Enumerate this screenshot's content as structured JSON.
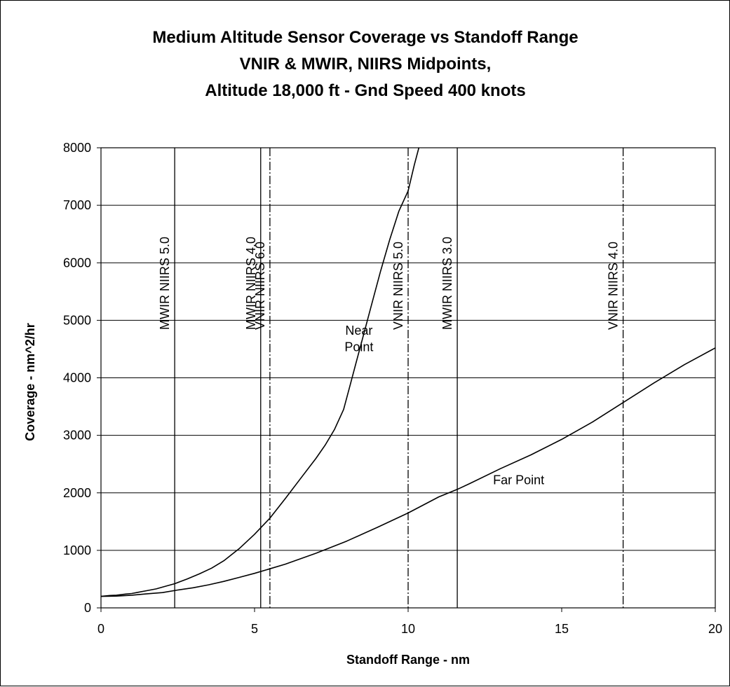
{
  "chart_data": {
    "type": "line",
    "title": [
      "Medium Altitude Sensor Coverage vs Standoff Range",
      "VNIR & MWIR, NIIRS Midpoints,",
      "Altitude 18,000 ft - Gnd Speed 400 knots"
    ],
    "xlabel": "Standoff Range - nm",
    "ylabel": "Coverage - nm^2/hr",
    "xlim": [
      0,
      20
    ],
    "ylim": [
      0,
      8000
    ],
    "x_ticks": [
      0,
      5,
      10,
      15,
      20
    ],
    "x_tick_labels": [
      "0",
      "5",
      "10",
      "15",
      "20"
    ],
    "y_ticks": [
      0,
      1000,
      2000,
      3000,
      4000,
      5000,
      6000,
      7000,
      8000
    ],
    "y_tick_labels": [
      "0",
      "1000",
      "2000",
      "3000",
      "4000",
      "5000",
      "6000",
      "7000",
      "8000"
    ],
    "grid": "horizontal",
    "series": [
      {
        "name": "Near Point",
        "x": [
          0,
          0.3,
          0.5,
          0.8,
          1.0,
          1.2,
          1.5,
          1.8,
          2.0,
          2.4,
          2.8,
          3.2,
          3.6,
          4.0,
          4.5,
          5.0,
          5.5,
          6.0,
          6.5,
          7.0,
          7.3,
          7.6,
          7.9,
          8.1,
          8.3,
          8.5,
          8.8,
          9.1,
          9.4,
          9.7,
          10.0,
          10.2,
          10.35
        ],
        "values": [
          200,
          215,
          220,
          240,
          250,
          270,
          300,
          330,
          360,
          420,
          500,
          590,
          690,
          820,
          1030,
          1280,
          1560,
          1900,
          2250,
          2600,
          2830,
          3100,
          3450,
          3850,
          4250,
          4650,
          5250,
          5850,
          6400,
          6900,
          7250,
          7700,
          8000
        ]
      },
      {
        "name": "Far Point",
        "x": [
          0,
          0.5,
          1.0,
          1.5,
          2.0,
          2.5,
          3.0,
          3.5,
          4.0,
          4.5,
          5.0,
          5.5,
          6.0,
          7.0,
          8.0,
          9.0,
          10.0,
          11.0,
          11.6,
          12.0,
          13.0,
          14.0,
          15.0,
          16.0,
          17.0,
          18.0,
          19.0,
          20.0
        ],
        "values": [
          200,
          205,
          220,
          245,
          265,
          310,
          350,
          400,
          460,
          530,
          600,
          680,
          760,
          950,
          1160,
          1400,
          1650,
          1930,
          2060,
          2160,
          2420,
          2660,
          2930,
          3230,
          3570,
          3910,
          4230,
          4520
        ]
      }
    ],
    "vertical_lines": [
      {
        "label": "MWIR NIIRS 5.0",
        "x": 2.4,
        "style": "solid"
      },
      {
        "label": "MWIR NIIRS 4.0",
        "x": 5.2,
        "style": "solid"
      },
      {
        "label": "VNIR NIIRS 6.0",
        "x": 5.5,
        "style": "dashdot"
      },
      {
        "label": "VNIR NIIRS 5.0",
        "x": 10.0,
        "style": "dashdot"
      },
      {
        "label": "MWIR NIIRS 3.0",
        "x": 11.6,
        "style": "solid"
      },
      {
        "label": "VNIR NIIRS 4.0",
        "x": 17.0,
        "style": "dashdot"
      }
    ],
    "annotations": [
      {
        "lines": [
          "Near",
          "Point"
        ],
        "x": 8.4,
        "y": 4750
      },
      {
        "lines": [
          "Far Point"
        ],
        "x": 13.6,
        "y": 2150
      }
    ]
  }
}
